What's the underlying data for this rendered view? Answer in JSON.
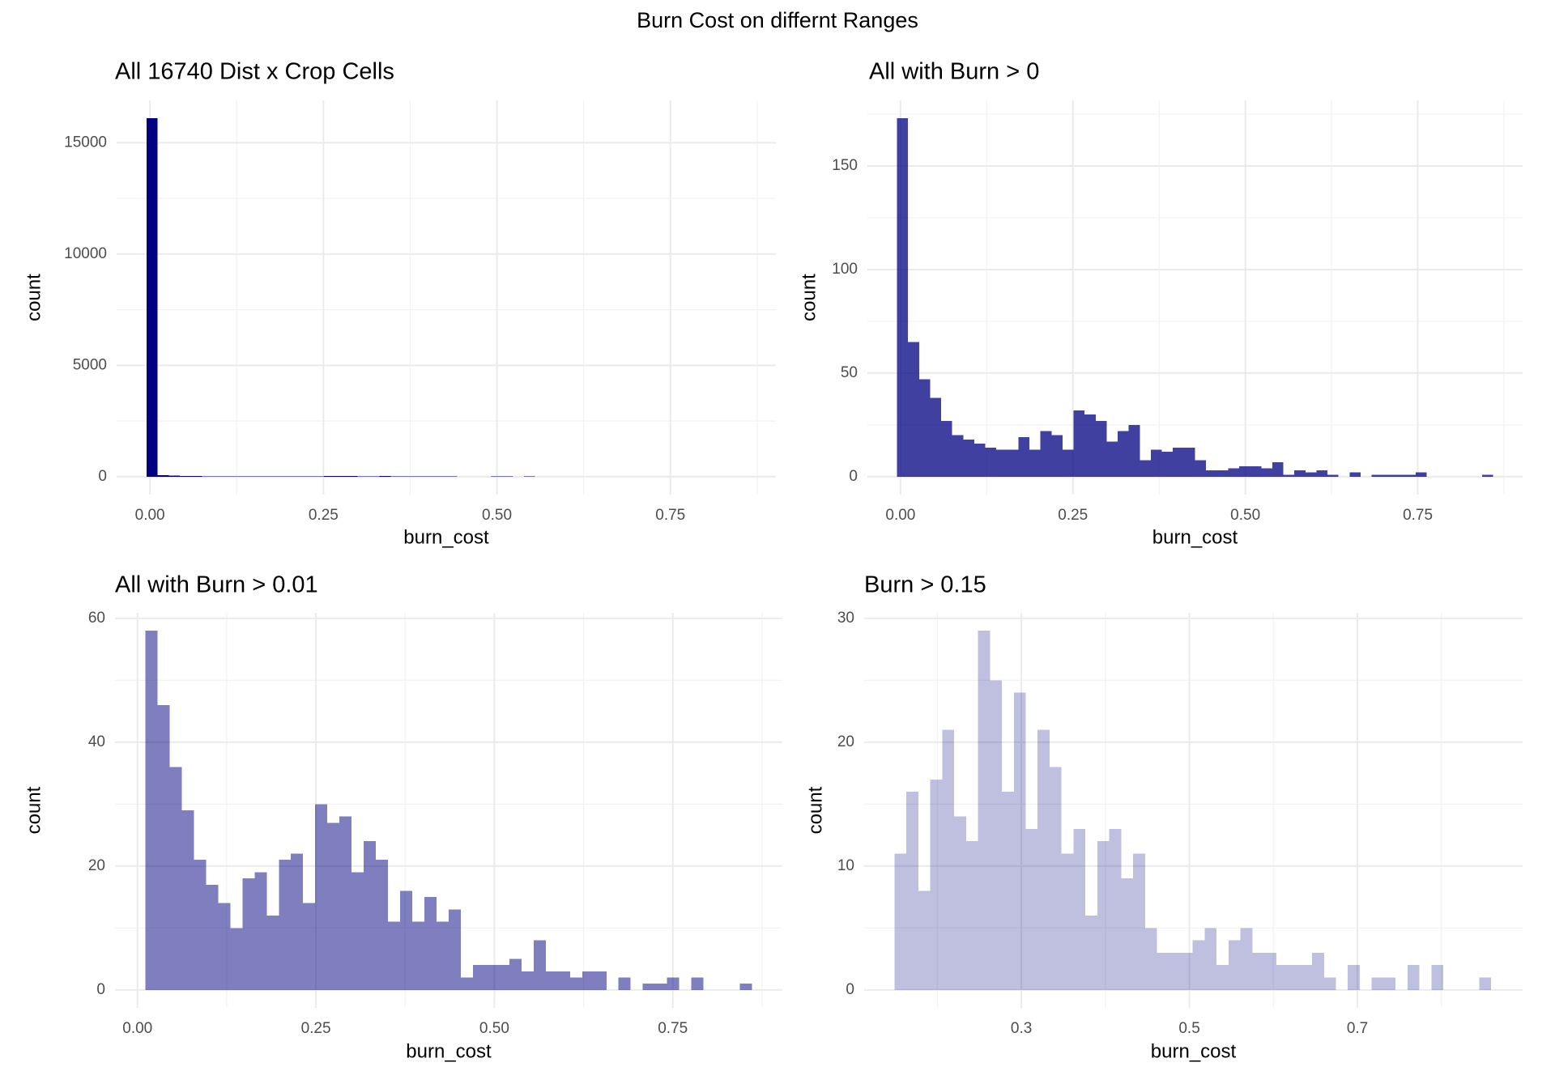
{
  "title": "Burn Cost on differnt Ranges",
  "chart_data": [
    {
      "type": "histogram",
      "title": "All 16740 Dist x Crop Cells",
      "x_label": "burn_cost",
      "y_label": "count",
      "color": "#000080",
      "alpha": 1,
      "grid": true,
      "bins": [
        -0.005,
        0.011,
        0.027,
        0.043,
        0.059,
        0.075,
        0.091,
        0.107,
        0.123,
        0.139,
        0.155,
        0.171,
        0.187,
        0.203,
        0.219,
        0.235,
        0.251,
        0.267,
        0.283,
        0.299,
        0.315,
        0.331,
        0.347,
        0.363,
        0.379,
        0.395,
        0.411,
        0.427,
        0.443,
        0.459,
        0.475,
        0.491,
        0.507,
        0.523,
        0.539,
        0.555,
        0.571,
        0.587,
        0.603,
        0.619,
        0.635,
        0.651,
        0.667,
        0.683,
        0.699,
        0.715,
        0.731,
        0.747,
        0.763,
        0.779,
        0.795,
        0.811,
        0.827,
        0.843,
        0.859
      ],
      "values": [
        16100,
        65,
        47,
        38,
        27,
        20,
        18,
        16,
        14,
        13,
        13,
        19,
        13,
        22,
        20,
        13,
        32,
        30,
        27,
        17,
        22,
        25,
        8,
        13,
        12,
        14,
        14,
        8,
        3,
        3,
        4,
        5,
        5,
        4,
        7,
        1,
        3,
        2,
        3,
        1,
        0,
        2,
        0,
        1,
        1,
        1,
        1,
        2,
        0,
        0,
        0,
        0,
        0,
        1
      ],
      "xlim": [
        -0.048,
        0.902
      ],
      "ylim": [
        -805,
        16905
      ],
      "xticks": [
        {
          "value": 0,
          "label": "0.00"
        },
        {
          "value": 0.25,
          "label": "0.25"
        },
        {
          "value": 0.5,
          "label": "0.50"
        },
        {
          "value": 0.75,
          "label": "0.75"
        }
      ],
      "xminor": [
        0.125,
        0.375,
        0.625,
        0.875
      ],
      "yticks": [
        0,
        5000,
        10000,
        15000
      ],
      "yminor": [
        2500,
        7500,
        12500
      ]
    },
    {
      "type": "histogram",
      "title": "All with Burn > 0",
      "x_label": "burn_cost",
      "y_label": "count",
      "color": "#000080",
      "alpha": 0.75,
      "grid": true,
      "bins": [
        -0.005,
        0.011,
        0.027,
        0.043,
        0.059,
        0.075,
        0.091,
        0.107,
        0.123,
        0.139,
        0.155,
        0.171,
        0.187,
        0.203,
        0.219,
        0.235,
        0.251,
        0.267,
        0.283,
        0.299,
        0.315,
        0.331,
        0.347,
        0.363,
        0.379,
        0.395,
        0.411,
        0.427,
        0.443,
        0.459,
        0.475,
        0.491,
        0.507,
        0.523,
        0.539,
        0.555,
        0.571,
        0.587,
        0.603,
        0.619,
        0.635,
        0.651,
        0.667,
        0.683,
        0.699,
        0.715,
        0.731,
        0.747,
        0.763,
        0.779,
        0.795,
        0.811,
        0.827,
        0.843,
        0.859
      ],
      "values": [
        173,
        65,
        47,
        38,
        27,
        20,
        18,
        16,
        14,
        13,
        13,
        19,
        13,
        22,
        20,
        13,
        32,
        30,
        27,
        17,
        22,
        25,
        8,
        13,
        12,
        14,
        14,
        8,
        3,
        3,
        4,
        5,
        5,
        4,
        7,
        1,
        3,
        2,
        3,
        1,
        0,
        2,
        0,
        1,
        1,
        1,
        1,
        2,
        0,
        0,
        0,
        0,
        0,
        1
      ],
      "xlim": [
        -0.048,
        0.902
      ],
      "ylim": [
        -8.65,
        181.65
      ],
      "xticks": [
        {
          "value": 0,
          "label": "0.00"
        },
        {
          "value": 0.25,
          "label": "0.25"
        },
        {
          "value": 0.5,
          "label": "0.50"
        },
        {
          "value": 0.75,
          "label": "0.75"
        }
      ],
      "xminor": [
        0.125,
        0.375,
        0.625,
        0.875
      ],
      "yticks": [
        0,
        50,
        100,
        150
      ],
      "yminor": [
        25,
        75,
        125,
        175
      ]
    },
    {
      "type": "histogram",
      "title": "All with Burn > 0.01",
      "x_label": "burn_cost",
      "y_label": "count",
      "color": "#000080",
      "alpha": 0.5,
      "grid": true,
      "bins": [
        0.011,
        0.028,
        0.045,
        0.062,
        0.079,
        0.096,
        0.113,
        0.13,
        0.147,
        0.164,
        0.181,
        0.198,
        0.215,
        0.232,
        0.249,
        0.266,
        0.283,
        0.3,
        0.317,
        0.334,
        0.351,
        0.368,
        0.385,
        0.402,
        0.419,
        0.436,
        0.453,
        0.47,
        0.487,
        0.504,
        0.521,
        0.538,
        0.555,
        0.572,
        0.589,
        0.606,
        0.623,
        0.64,
        0.657,
        0.674,
        0.691,
        0.708,
        0.725,
        0.742,
        0.759,
        0.776,
        0.793,
        0.81,
        0.827,
        0.844,
        0.861
      ],
      "values": [
        58,
        46,
        36,
        29,
        21,
        17,
        14,
        10,
        18,
        19,
        12,
        21,
        22,
        14,
        30,
        27,
        28,
        19,
        24,
        21,
        11,
        16,
        11,
        15,
        11,
        13,
        2,
        4,
        4,
        4,
        5,
        3,
        8,
        3,
        3,
        2,
        3,
        3,
        0,
        2,
        0,
        1,
        1,
        2,
        0,
        2,
        0,
        0,
        0,
        1
      ],
      "xlim": [
        -0.0315,
        0.9035
      ],
      "ylim": [
        -2.9,
        60.9
      ],
      "xticks": [
        {
          "value": 0,
          "label": "0.00"
        },
        {
          "value": 0.25,
          "label": "0.25"
        },
        {
          "value": 0.5,
          "label": "0.50"
        },
        {
          "value": 0.75,
          "label": "0.75"
        }
      ],
      "xminor": [
        0.125,
        0.375,
        0.625,
        0.875
      ],
      "yticks": [
        0,
        20,
        40,
        60
      ],
      "yminor": [
        10,
        30,
        50
      ]
    },
    {
      "type": "histogram",
      "title": "Burn > 0.15",
      "x_label": "burn_cost",
      "y_label": "count",
      "color": "#000080",
      "alpha": 0.25,
      "grid": true,
      "bins": [
        0.149,
        0.1632,
        0.1774,
        0.1916,
        0.2058,
        0.22,
        0.2342,
        0.2484,
        0.2626,
        0.2768,
        0.291,
        0.3052,
        0.3194,
        0.3336,
        0.3478,
        0.362,
        0.3762,
        0.3904,
        0.4046,
        0.4188,
        0.433,
        0.4472,
        0.4614,
        0.4756,
        0.4898,
        0.504,
        0.5182,
        0.5324,
        0.5466,
        0.5608,
        0.575,
        0.5892,
        0.6034,
        0.6176,
        0.6318,
        0.646,
        0.6602,
        0.6744,
        0.6886,
        0.7028,
        0.717,
        0.7312,
        0.7454,
        0.7596,
        0.7738,
        0.788,
        0.8022,
        0.8164,
        0.8306,
        0.8448,
        0.859
      ],
      "values": [
        11,
        16,
        8,
        17,
        21,
        14,
        12,
        29,
        25,
        16,
        24,
        13,
        21,
        18,
        11,
        13,
        6,
        12,
        13,
        9,
        11,
        5,
        3,
        3,
        3,
        4,
        5,
        2,
        4,
        5,
        3,
        3,
        2,
        2,
        2,
        3,
        1,
        0,
        2,
        0,
        1,
        1,
        0,
        2,
        0,
        2,
        0,
        0,
        0,
        1
      ],
      "xlim": [
        0.1129,
        0.8966
      ],
      "ylim": [
        -1.45,
        30.45
      ],
      "xticks": [
        0.3,
        0.5,
        0.7
      ],
      "xminor": [
        0.2,
        0.4,
        0.6,
        0.8
      ],
      "yticks": [
        0,
        10,
        20,
        30
      ],
      "yminor": [
        5,
        15,
        25
      ]
    }
  ]
}
